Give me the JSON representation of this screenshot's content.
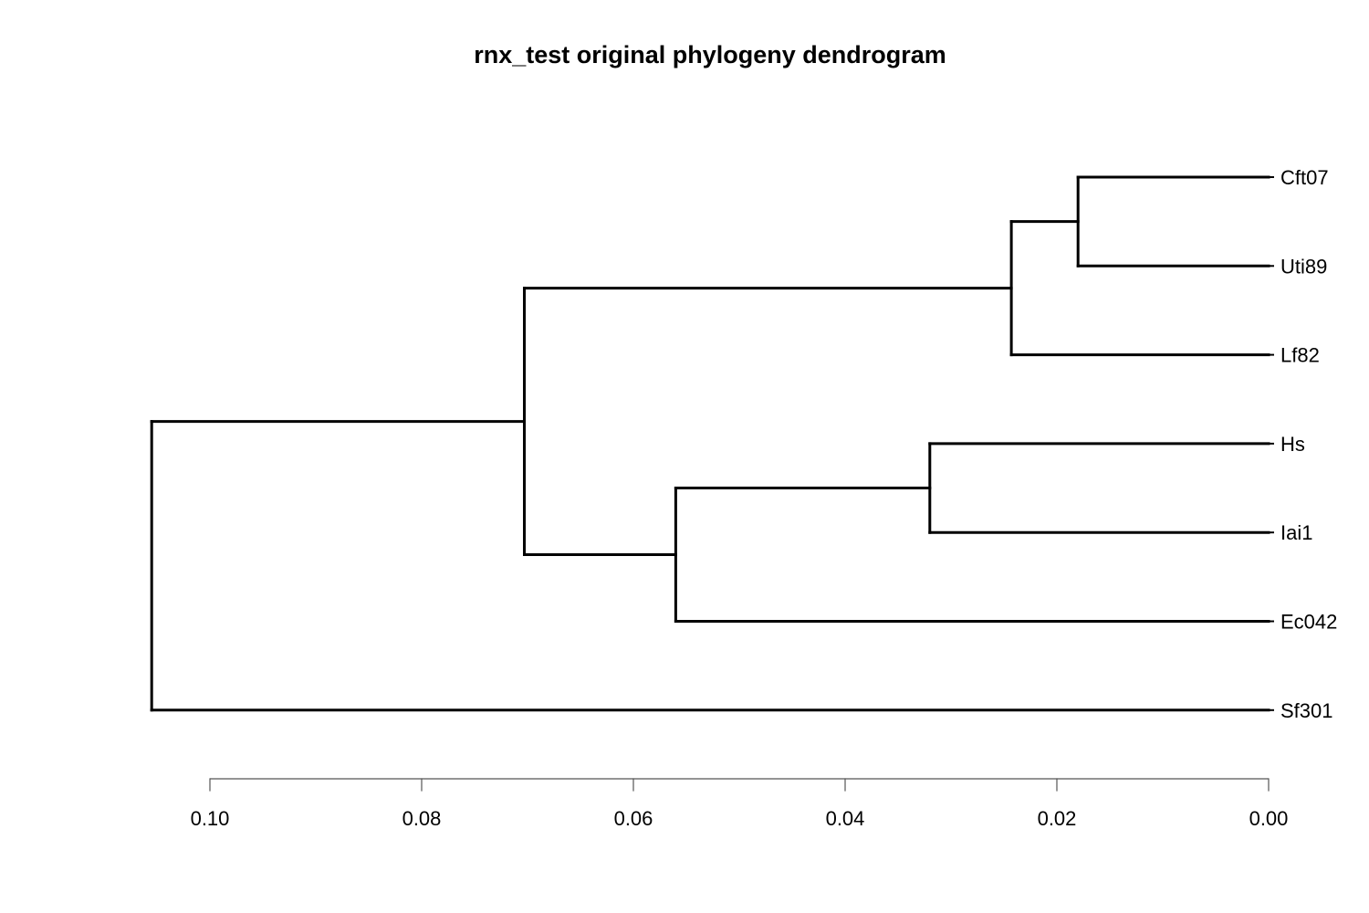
{
  "chart_data": {
    "type": "dendrogram",
    "title": "rnx_test original phylogeny dendrogram",
    "leaves": [
      "Cft07",
      "Uti89",
      "Lf82",
      "Hs",
      "Iai1",
      "Ec042",
      "Sf301"
    ],
    "merges": [
      {
        "id": "m1",
        "children": [
          "Cft07",
          "Uti89"
        ],
        "height": 0.018
      },
      {
        "id": "m2",
        "children": [
          "m1",
          "Lf82"
        ],
        "height": 0.0243
      },
      {
        "id": "m3",
        "children": [
          "Hs",
          "Iai1"
        ],
        "height": 0.032
      },
      {
        "id": "m4",
        "children": [
          "m3",
          "Ec042"
        ],
        "height": 0.056
      },
      {
        "id": "m5",
        "children": [
          "m2",
          "m4"
        ],
        "height": 0.0703
      },
      {
        "id": "m6",
        "children": [
          "m5",
          "Sf301"
        ],
        "height": 0.1055
      }
    ],
    "axis": {
      "ticks": [
        0.1,
        0.08,
        0.06,
        0.04,
        0.02,
        0.0
      ],
      "tick_labels": [
        "0.10",
        "0.08",
        "0.06",
        "0.04",
        "0.02",
        "0.00"
      ],
      "range": [
        0.1,
        0.0
      ]
    },
    "colors": {
      "branch": "#000000",
      "axis": "#555555"
    }
  }
}
